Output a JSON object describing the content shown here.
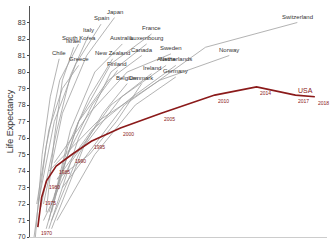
{
  "chart_data": {
    "type": "line",
    "y_label": "Life Expectancy",
    "xlim": [
      0,
      11000
    ],
    "ylim": [
      70,
      84
    ],
    "yticks": [
      70,
      71,
      72,
      73,
      74,
      75,
      76,
      77,
      78,
      79,
      80,
      81,
      82,
      83
    ],
    "grid": false,
    "tick_labels": "y",
    "series": [
      {
        "name": "Japan",
        "color": "#a0a0a0",
        "x": [
          500,
          1200,
          2100,
          3130
        ],
        "values": [
          72.0,
          77.5,
          81.0,
          83.3
        ]
      },
      {
        "name": "Spain",
        "color": "#a0a0a0",
        "x": [
          300,
          900,
          1700,
          2630
        ],
        "values": [
          72.0,
          77.0,
          80.5,
          82.9
        ]
      },
      {
        "name": "Italy",
        "color": "#a0a0a0",
        "x": [
          400,
          1000,
          1500,
          2160
        ],
        "values": [
          71.8,
          76.5,
          79.8,
          82.2
        ]
      },
      {
        "name": "South Korea",
        "color": "#a0a0a0",
        "x": [
          150,
          600,
          1100,
          1800
        ],
        "values": [
          70.0,
          75.5,
          79.5,
          81.7
        ]
      },
      {
        "name": "Israel",
        "color": "#a0a0a0",
        "x": [
          600,
          900,
          1200,
          1620
        ],
        "values": [
          71.5,
          76.0,
          79.5,
          81.5
        ]
      },
      {
        "name": "Chile",
        "color": "#a0a0a0",
        "x": [
          200,
          450,
          750,
          1080
        ],
        "values": [
          70.0,
          75.0,
          78.5,
          80.8
        ]
      },
      {
        "name": "Greece",
        "color": "#a0a0a0",
        "x": [
          250,
          700,
          1200,
          1800
        ],
        "values": [
          72.0,
          76.5,
          79.0,
          80.4
        ]
      },
      {
        "name": "Australia",
        "color": "#a0a0a0",
        "x": [
          700,
          1500,
          2400,
          3420
        ],
        "values": [
          71.0,
          76.5,
          80.0,
          81.7
        ]
      },
      {
        "name": "France",
        "color": "#a0a0a0",
        "x": [
          700,
          1800,
          3000,
          4500
        ],
        "values": [
          71.5,
          77.0,
          80.5,
          82.3
        ]
      },
      {
        "name": "Luxembourg",
        "color": "#a0a0a0",
        "x": [
          700,
          1800,
          3000,
          4320
        ],
        "values": [
          70.5,
          76.0,
          80.0,
          81.7
        ]
      },
      {
        "name": "Canada",
        "color": "#a0a0a0",
        "x": [
          900,
          1800,
          2900,
          4140
        ],
        "values": [
          72.5,
          77.0,
          79.5,
          81.0
        ]
      },
      {
        "name": "Sweden",
        "color": "#a0a0a0",
        "x": [
          900,
          2200,
          3600,
          5220
        ],
        "values": [
          74.5,
          77.5,
          80.0,
          81.1
        ]
      },
      {
        "name": "Switzerland",
        "color": "#a0a0a0",
        "x": [
          1200,
          3500,
          6500,
          9900
        ],
        "values": [
          73.0,
          78.0,
          81.5,
          83.0
        ]
      },
      {
        "name": "Norway",
        "color": "#a0a0a0",
        "x": [
          700,
          2500,
          4800,
          7380
        ],
        "values": [
          74.0,
          77.0,
          79.5,
          81.0
        ]
      },
      {
        "name": "New Zealand",
        "color": "#a0a0a0",
        "x": [
          800,
          1400,
          2200,
          3060
        ],
        "values": [
          71.5,
          75.5,
          78.5,
          80.8
        ]
      },
      {
        "name": "Finland",
        "color": "#a0a0a0",
        "x": [
          600,
          1400,
          2300,
          3240
        ],
        "values": [
          70.5,
          75.0,
          78.0,
          80.1
        ]
      },
      {
        "name": "Austria",
        "color": "#a0a0a0",
        "x": [
          800,
          2000,
          3400,
          5040
        ],
        "values": [
          70.5,
          75.5,
          78.5,
          80.4
        ]
      },
      {
        "name": "Netherlands",
        "color": "#a0a0a0",
        "x": [
          1000,
          2300,
          3800,
          5400
        ],
        "values": [
          73.5,
          76.5,
          78.5,
          80.4
        ]
      },
      {
        "name": "Ireland",
        "color": "#a0a0a0",
        "x": [
          500,
          1500,
          3000,
          4500
        ],
        "values": [
          71.0,
          74.5,
          78.0,
          79.9
        ]
      },
      {
        "name": "Germany",
        "color": "#a0a0a0",
        "x": [
          1000,
          2400,
          3900,
          5400
        ],
        "values": [
          71.0,
          75.0,
          78.0,
          79.7
        ]
      },
      {
        "name": "Belgium",
        "color": "#a0a0a0",
        "x": [
          800,
          1800,
          2700,
          3600
        ],
        "values": [
          71.0,
          75.0,
          77.5,
          79.3
        ]
      },
      {
        "name": "Denmark",
        "color": "#a0a0a0",
        "x": [
          1000,
          2200,
          3200,
          4140
        ],
        "values": [
          73.5,
          75.0,
          77.0,
          79.3
        ]
      },
      {
        "name": "USA",
        "color": "#8b1a1a",
        "x": [
          290,
          430,
          610,
          970,
          1550,
          2270,
          3350,
          4860,
          6840,
          8390,
          9830,
          10550
        ],
        "values": [
          70.6,
          72.4,
          73.4,
          74.3,
          75.0,
          75.8,
          76.6,
          77.5,
          78.6,
          79.1,
          78.6,
          78.5
        ],
        "labels": [
          "1970",
          "1975",
          "1980",
          "1985",
          "1990",
          "1995",
          "2000",
          "2005",
          "2010",
          "2014",
          "2017",
          "2018"
        ]
      }
    ]
  }
}
